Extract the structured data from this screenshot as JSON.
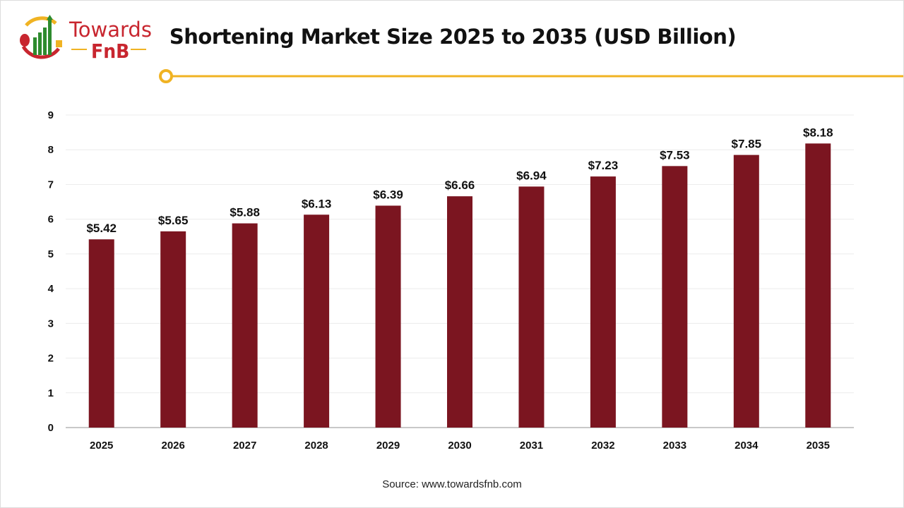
{
  "logo": {
    "line1": "Towards",
    "line2": "FnB"
  },
  "source": "Source: www.towardsfnb.com",
  "colors": {
    "bar": "#7b1520",
    "accent": "#f0b323",
    "logo_red": "#c8262f",
    "logo_green": "#2e8b2e"
  },
  "chart_data": {
    "type": "bar",
    "title": "Shortening Market Size 2025 to 2035 (USD Billion)",
    "categories": [
      "2025",
      "2026",
      "2027",
      "2028",
      "2029",
      "2030",
      "2031",
      "2032",
      "2033",
      "2034",
      "2035"
    ],
    "values": [
      5.42,
      5.65,
      5.88,
      6.13,
      6.39,
      6.66,
      6.94,
      7.23,
      7.53,
      7.85,
      8.18
    ],
    "data_labels": [
      "$5.42",
      "$5.65",
      "$5.88",
      "$6.13",
      "$6.39",
      "$6.66",
      "$6.94",
      "$7.23",
      "$7.53",
      "$7.85",
      "$8.18"
    ],
    "yticks": [
      "0",
      "1",
      "2",
      "3",
      "4",
      "5",
      "6",
      "7",
      "8",
      "9"
    ],
    "ylim": [
      0,
      9
    ],
    "grid": true,
    "legend": "none"
  }
}
